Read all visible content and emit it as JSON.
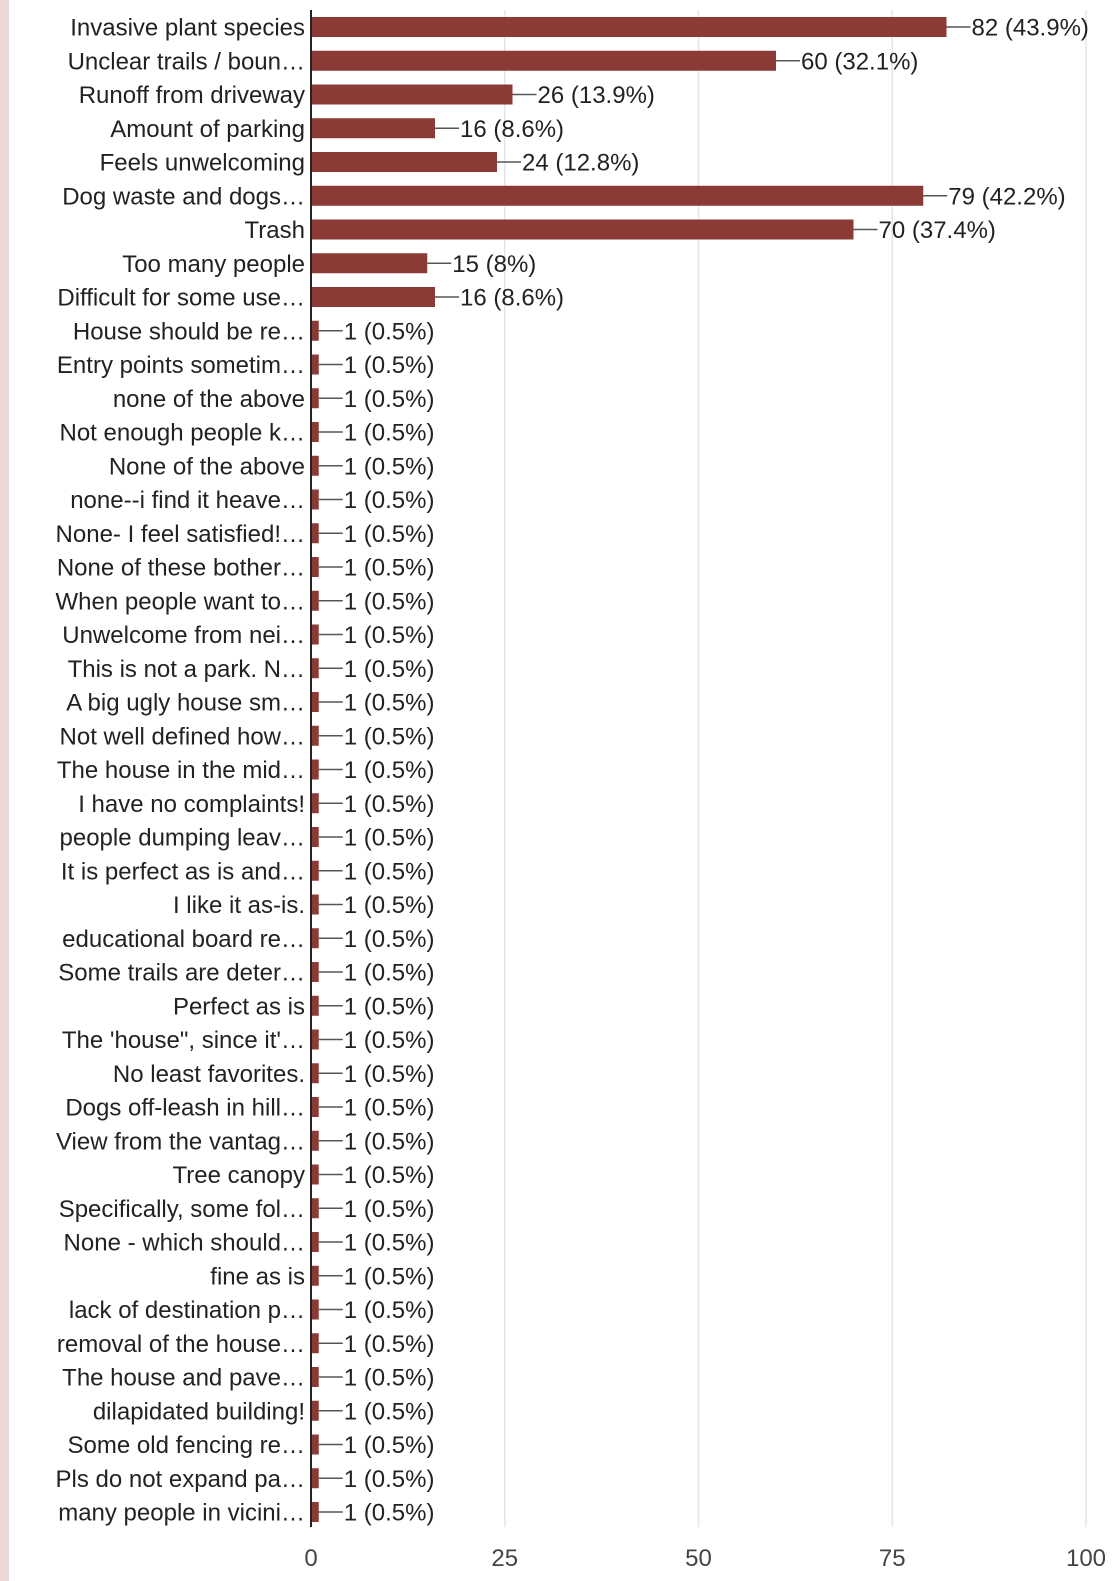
{
  "colors": {
    "bar": "#8b3a35",
    "grid": "#e6e6e6",
    "axis": "#222222",
    "text": "#222222",
    "accent_strip": "#ead8d6"
  },
  "chart_data": {
    "type": "bar",
    "orientation": "horizontal",
    "title": "",
    "xlabel": "",
    "ylabel": "",
    "xlim": [
      0,
      100
    ],
    "xticks": [
      0,
      25,
      50,
      75,
      100
    ],
    "grid": true,
    "legend": "none",
    "categories": [
      "Invasive plant species",
      "Unclear trails / boun…",
      "Runoff from driveway",
      "Amount of parking",
      "Feels unwelcoming",
      "Dog waste and dogs…",
      "Trash",
      "Too many people",
      "Difficult for some use…",
      "House should be re…",
      "Entry points sometim…",
      "none of the above",
      "Not enough people k…",
      "None of the above",
      "none--i find it heave…",
      "None- I feel satisfied!…",
      "None of these bother…",
      "When people want to…",
      "Unwelcome from nei…",
      "This is not a park. N…",
      "A big ugly house sm…",
      "Not well defined how…",
      "The house in the mid…",
      "I have no complaints!",
      "people dumping leav…",
      "It is perfect as is and…",
      "I like it as-is.",
      "educational board re…",
      "Some trails are deter…",
      "Perfect as is",
      "The 'house\", since it'…",
      "No least favorites.",
      "Dogs off-leash in hill…",
      "View from the vantag…",
      "Tree canopy",
      "Specifically, some fol…",
      "None - which should…",
      "fine as is",
      "lack of destination p…",
      "removal of the house…",
      "The house and pave…",
      "dilapidated building!",
      "Some old fencing re…",
      "Pls do not expand pa…",
      "many people in vicini…"
    ],
    "values": [
      82,
      60,
      26,
      16,
      24,
      79,
      70,
      15,
      16,
      1,
      1,
      1,
      1,
      1,
      1,
      1,
      1,
      1,
      1,
      1,
      1,
      1,
      1,
      1,
      1,
      1,
      1,
      1,
      1,
      1,
      1,
      1,
      1,
      1,
      1,
      1,
      1,
      1,
      1,
      1,
      1,
      1,
      1,
      1,
      1
    ],
    "data_labels": [
      "82 (43.9%)",
      "60 (32.1%)",
      "26 (13.9%)",
      "16 (8.6%)",
      "24 (12.8%)",
      "79 (42.2%)",
      "70 (37.4%)",
      "15 (8%)",
      "16 (8.6%)",
      "1 (0.5%)",
      "1 (0.5%)",
      "1 (0.5%)",
      "1 (0.5%)",
      "1 (0.5%)",
      "1 (0.5%)",
      "1 (0.5%)",
      "1 (0.5%)",
      "1 (0.5%)",
      "1 (0.5%)",
      "1 (0.5%)",
      "1 (0.5%)",
      "1 (0.5%)",
      "1 (0.5%)",
      "1 (0.5%)",
      "1 (0.5%)",
      "1 (0.5%)",
      "1 (0.5%)",
      "1 (0.5%)",
      "1 (0.5%)",
      "1 (0.5%)",
      "1 (0.5%)",
      "1 (0.5%)",
      "1 (0.5%)",
      "1 (0.5%)",
      "1 (0.5%)",
      "1 (0.5%)",
      "1 (0.5%)",
      "1 (0.5%)",
      "1 (0.5%)",
      "1 (0.5%)",
      "1 (0.5%)",
      "1 (0.5%)",
      "1 (0.5%)",
      "1 (0.5%)",
      "1 (0.5%)"
    ]
  }
}
